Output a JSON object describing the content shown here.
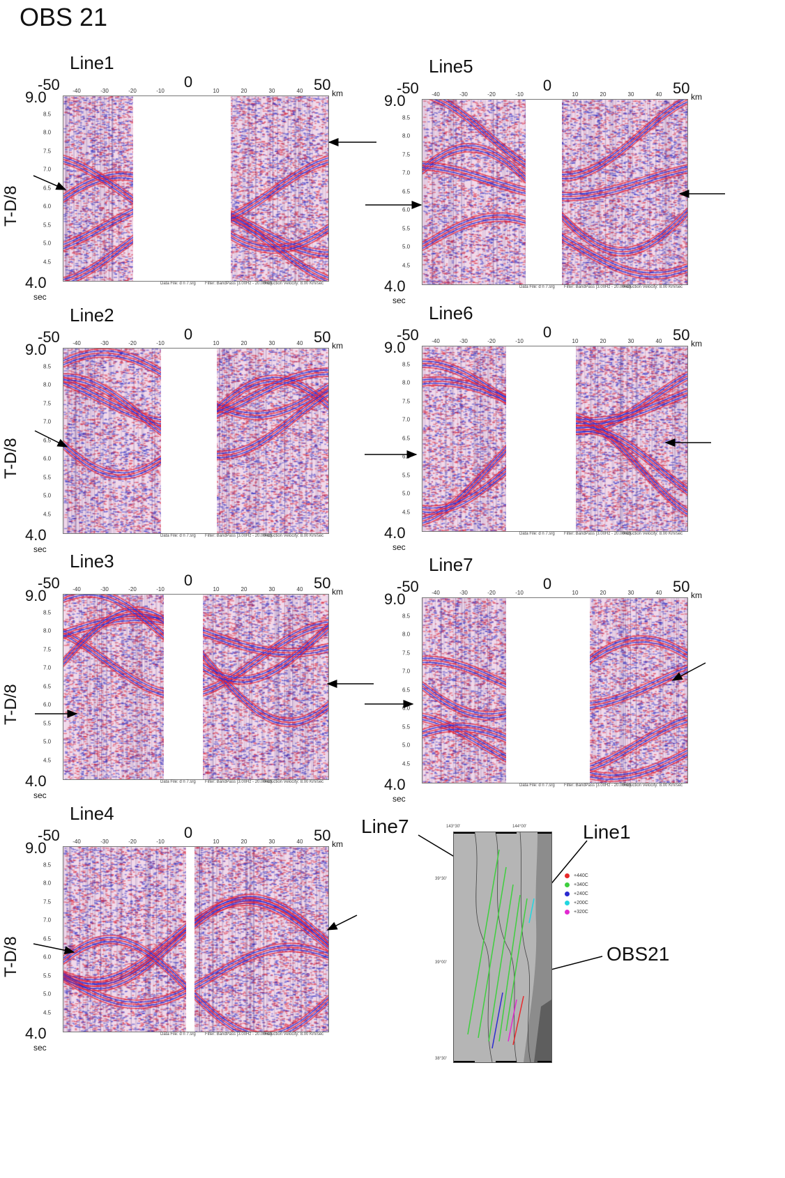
{
  "title": "OBS 21",
  "axis": {
    "y_top": "9.0",
    "y_bottom": "4.0",
    "y_unit": "sec",
    "y_label": "T-D/8",
    "x_left": "-50",
    "x_center": "0",
    "x_right": "50",
    "x_unit": "km",
    "x_ticks": [
      "-40",
      "-30",
      "-20",
      "-10",
      "10",
      "20",
      "30",
      "40"
    ],
    "y_ticks": [
      "8.5",
      "8.0",
      "7.5",
      "7.0",
      "6.5",
      "6.0",
      "5.5",
      "5.0",
      "4.5"
    ]
  },
  "footer": {
    "data_file": "Data File: d n 7.srg",
    "filter": "Filter: BandPass [3.00Hz - 20.00Hz]",
    "reduction": "Reduction Velocity: 8.00 Km/sec"
  },
  "panels": [
    {
      "label": "Line1",
      "show_ylabel": true,
      "gap_km": [
        -20,
        15
      ]
    },
    {
      "label": "Line5",
      "show_ylabel": false,
      "gap_km": [
        -8,
        5
      ]
    },
    {
      "label": "Line2",
      "show_ylabel": true,
      "gap_km": [
        -10,
        10
      ]
    },
    {
      "label": "Line6",
      "show_ylabel": false,
      "gap_km": [
        -15,
        10
      ]
    },
    {
      "label": "Line3",
      "show_ylabel": true,
      "gap_km": [
        -9,
        5
      ]
    },
    {
      "label": "Line7",
      "show_ylabel": false,
      "gap_km": [
        -15,
        15
      ]
    },
    {
      "label": "Line4",
      "show_ylabel": true,
      "gap_km": [
        -1,
        2
      ]
    }
  ],
  "map": {
    "lat_labels": [
      "39°30'",
      "39°00'",
      "38°30'"
    ],
    "lon_labels": [
      "143°30'",
      "144°00'"
    ],
    "legend": [
      {
        "label": "+440C",
        "color": "#e8292b"
      },
      {
        "label": "+340C",
        "color": "#3ecf3e"
      },
      {
        "label": "+240C",
        "color": "#2a2ad0"
      },
      {
        "label": "+200C",
        "color": "#22d6e0"
      },
      {
        "label": "+320C",
        "color": "#e22ad0"
      }
    ],
    "callouts": {
      "line7": "Line7",
      "line1": "Line1",
      "obs": "OBS21"
    }
  }
}
